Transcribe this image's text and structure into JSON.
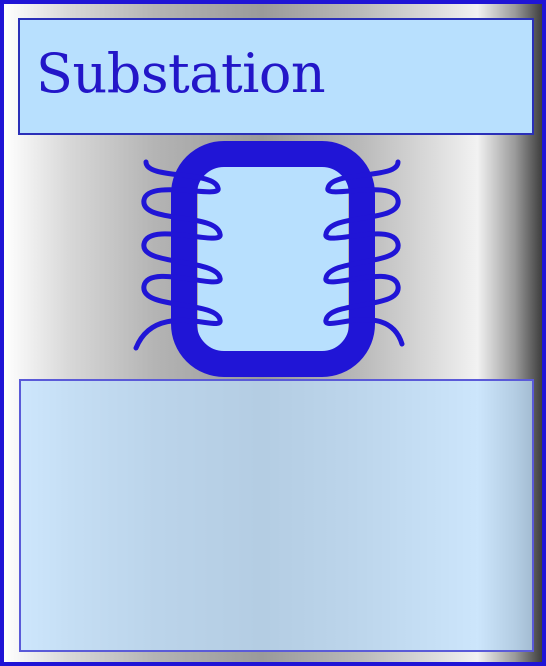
{
  "window": {
    "title": "Substation"
  },
  "icons": {
    "transformer": "transformer-icon"
  },
  "colors": {
    "accent": "#1f14d6",
    "title_background": "#b8e0fe",
    "title_text": "#2316c8",
    "content_background": "#c4e2fb"
  }
}
